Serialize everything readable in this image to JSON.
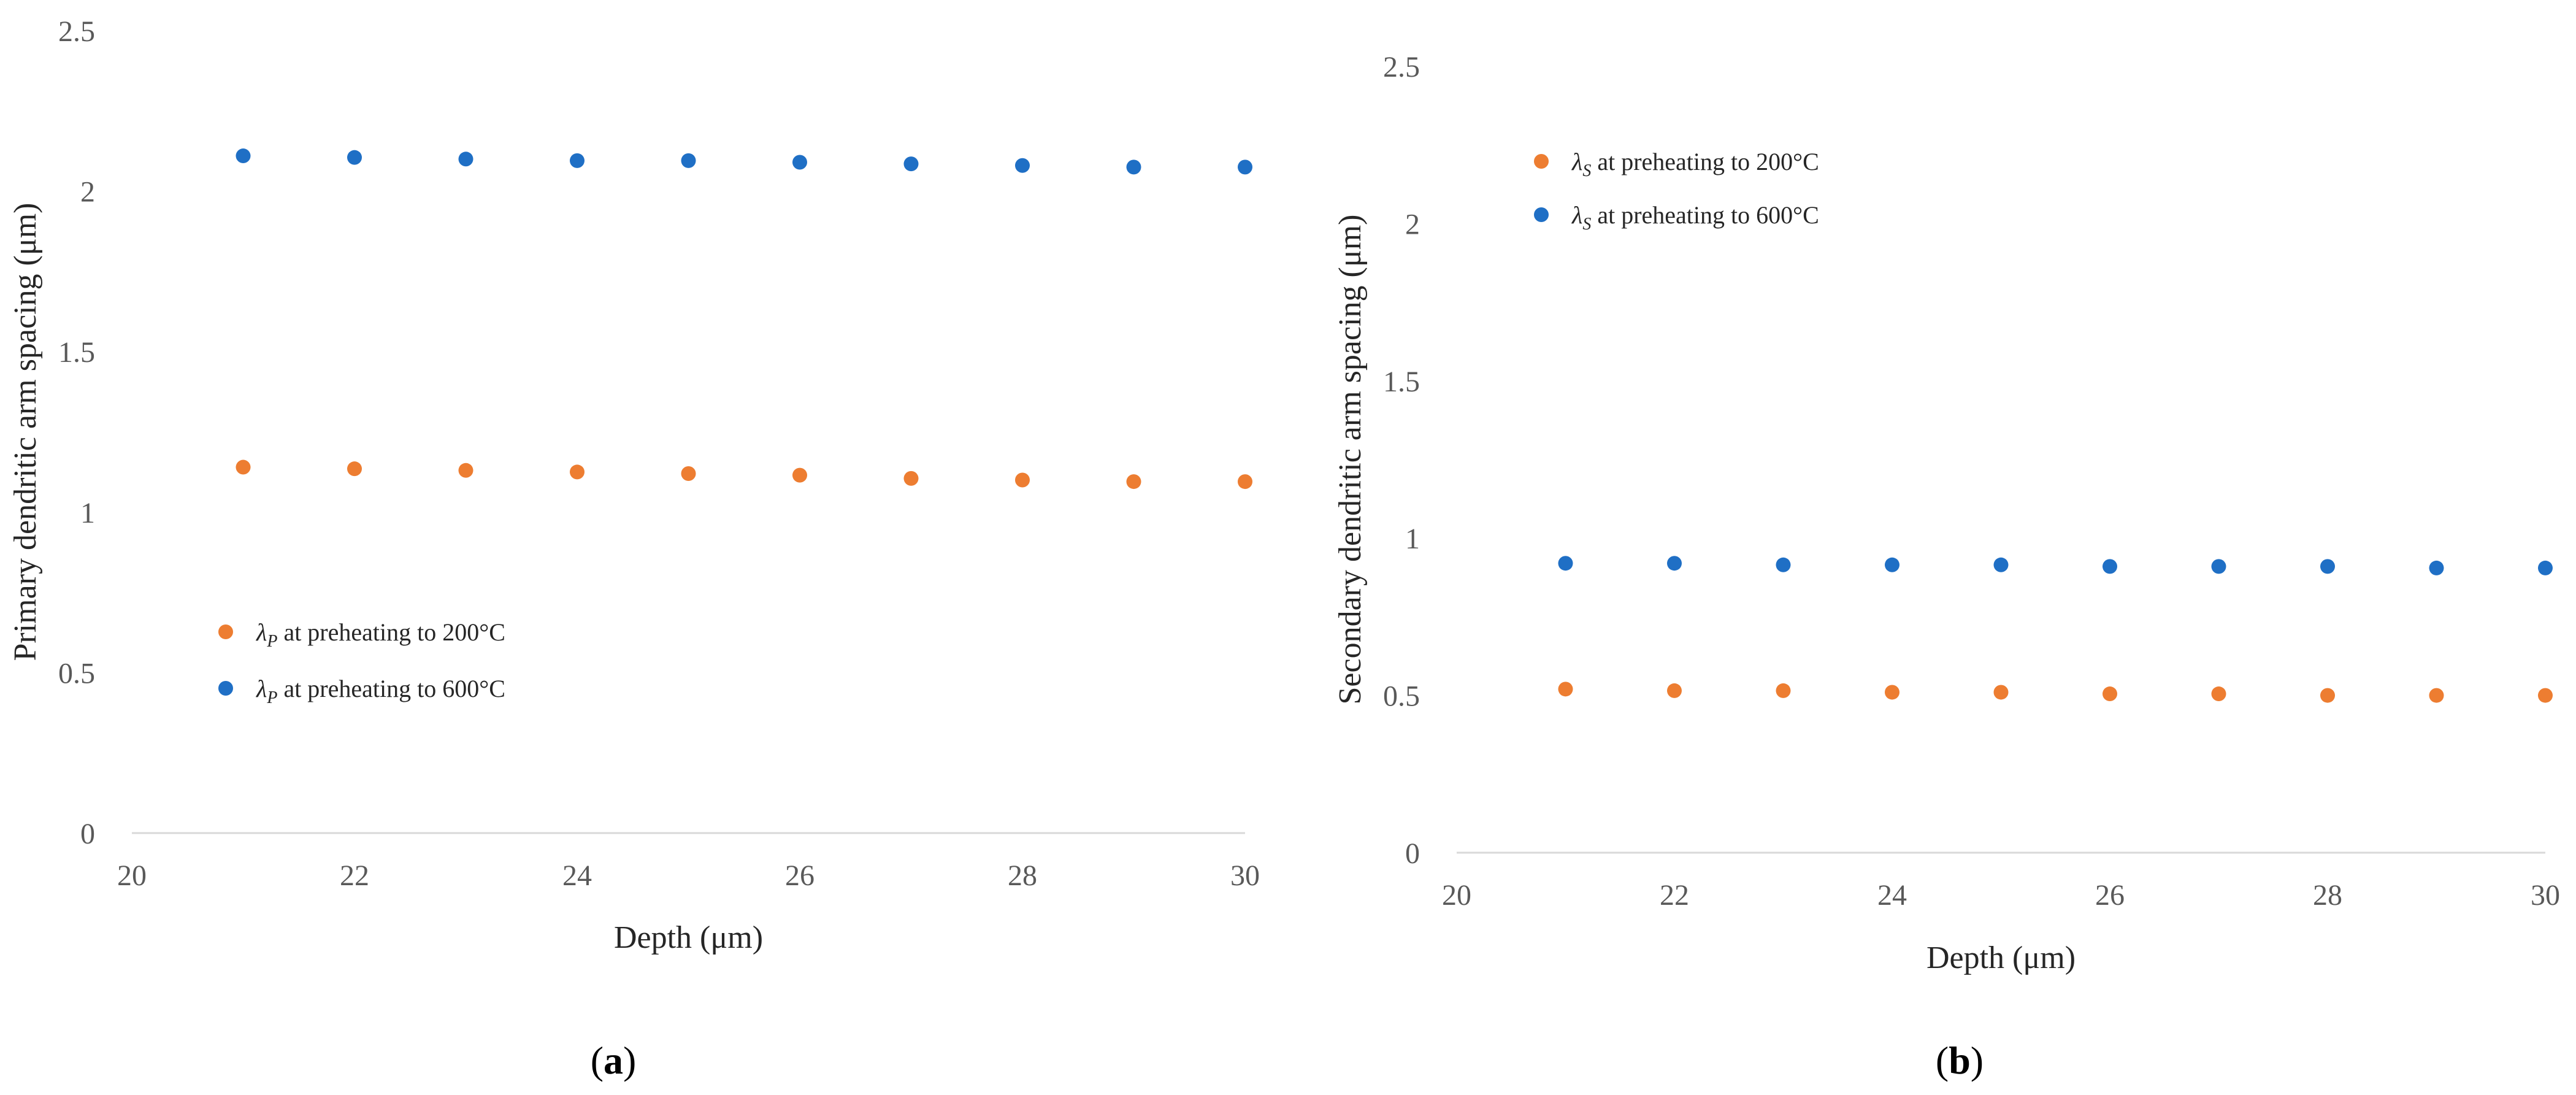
{
  "chart_data": [
    {
      "type": "scatter",
      "panel": "a",
      "xlabel": "Depth (μm)",
      "ylabel": "Primary dendritic arm spacing (μm)",
      "xlim": [
        20,
        30
      ],
      "ylim": [
        0,
        2.5
      ],
      "xticks": [
        "20",
        "22",
        "24",
        "26",
        "28",
        "30"
      ],
      "yticks": [
        "0",
        "0.5",
        "1",
        "1.5",
        "2",
        "2.5"
      ],
      "legend_position": "lower-left",
      "series": [
        {
          "name": "λP at preheating to 200°C",
          "symbol": "λ",
          "subscript": "P",
          "label": "at preheating to 200°C",
          "color": "#ED7D31",
          "x": [
            21,
            22,
            23,
            24,
            25,
            26,
            27,
            28,
            29,
            30
          ],
          "y": [
            1.14,
            1.135,
            1.13,
            1.125,
            1.12,
            1.115,
            1.105,
            1.1,
            1.095,
            1.095
          ]
        },
        {
          "name": "λP at preheating to 600°C",
          "symbol": "λ",
          "subscript": "P",
          "label": "at preheating to 600°C",
          "color": "#1F6FC5",
          "x": [
            21,
            22,
            23,
            24,
            25,
            26,
            27,
            28,
            29,
            30
          ],
          "y": [
            2.11,
            2.105,
            2.1,
            2.095,
            2.095,
            2.09,
            2.085,
            2.08,
            2.075,
            2.075
          ]
        }
      ]
    },
    {
      "type": "scatter",
      "panel": "b",
      "xlabel": "Depth (μm)",
      "ylabel": "Secondary dendritic arm spacing (μm)",
      "xlim": [
        20,
        30
      ],
      "ylim": [
        0,
        2.5
      ],
      "xticks": [
        "20",
        "22",
        "24",
        "26",
        "28",
        "30"
      ],
      "yticks": [
        "0",
        "0.5",
        "1",
        "1.5",
        "2",
        "2.5"
      ],
      "legend_position": "top-left",
      "series": [
        {
          "name": "λS at preheating to 200°C",
          "symbol": "λ",
          "subscript": "S",
          "label": "at preheating to 200°C",
          "color": "#ED7D31",
          "x": [
            21,
            22,
            23,
            24,
            25,
            26,
            27,
            28,
            29,
            30
          ],
          "y": [
            0.52,
            0.515,
            0.515,
            0.51,
            0.51,
            0.505,
            0.505,
            0.5,
            0.5,
            0.5
          ]
        },
        {
          "name": "λS at preheating to 600°C",
          "symbol": "λ",
          "subscript": "S",
          "label": "at preheating to 600°C",
          "color": "#1F6FC5",
          "x": [
            21,
            22,
            23,
            24,
            25,
            26,
            27,
            28,
            29,
            30
          ],
          "y": [
            0.92,
            0.92,
            0.915,
            0.915,
            0.915,
            0.91,
            0.91,
            0.91,
            0.905,
            0.905
          ]
        }
      ]
    }
  ],
  "panel_labels": [
    "a",
    "b"
  ]
}
